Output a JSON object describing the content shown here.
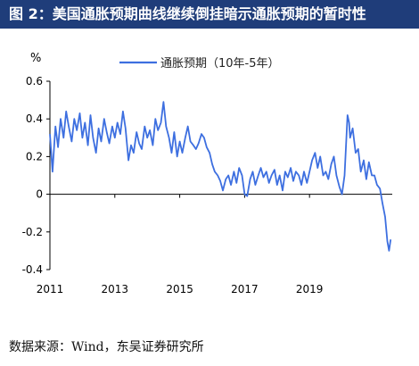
{
  "header": {
    "title": "图 2：美国通胀预期曲线继续倒挂暗示通胀预期的暂时性"
  },
  "footer": {
    "source": "数据来源：Wind，东吴证券研究所"
  },
  "chart_data": {
    "type": "line",
    "ylabel": "%",
    "ylim": [
      -0.4,
      0.6
    ],
    "xlim": [
      2011.0,
      2021.55
    ],
    "y_ticks": [
      -0.4,
      -0.2,
      0,
      0.2,
      0.4,
      0.6
    ],
    "y_tick_labels": [
      "-0.4",
      "-0.2",
      "0",
      "0.2",
      "0.4",
      "0.6"
    ],
    "x_ticks": [
      2011,
      2013,
      2015,
      2017,
      2019
    ],
    "x_tick_labels": [
      "2011",
      "2013",
      "2015",
      "2017",
      "2019"
    ],
    "legend_position": "top-center",
    "grid": false,
    "colors": {
      "series": "#3d6fe0",
      "axis": "#000000",
      "header_bg": "#1f3d7a"
    },
    "series": [
      {
        "name": "通胀预期（10年-5年）",
        "x": [
          2011.0,
          2011.08,
          2011.17,
          2011.25,
          2011.33,
          2011.42,
          2011.5,
          2011.58,
          2011.67,
          2011.75,
          2011.83,
          2011.92,
          2012.0,
          2012.08,
          2012.17,
          2012.25,
          2012.33,
          2012.42,
          2012.5,
          2012.58,
          2012.67,
          2012.75,
          2012.83,
          2012.92,
          2013.0,
          2013.08,
          2013.17,
          2013.25,
          2013.33,
          2013.42,
          2013.5,
          2013.58,
          2013.67,
          2013.75,
          2013.83,
          2013.92,
          2014.0,
          2014.08,
          2014.17,
          2014.25,
          2014.33,
          2014.42,
          2014.5,
          2014.58,
          2014.67,
          2014.75,
          2014.83,
          2014.92,
          2015.0,
          2015.08,
          2015.17,
          2015.25,
          2015.33,
          2015.42,
          2015.5,
          2015.58,
          2015.67,
          2015.75,
          2015.83,
          2015.92,
          2016.0,
          2016.08,
          2016.17,
          2016.25,
          2016.33,
          2016.42,
          2016.5,
          2016.58,
          2016.67,
          2016.75,
          2016.83,
          2016.92,
          2017.0,
          2017.08,
          2017.17,
          2017.25,
          2017.33,
          2017.42,
          2017.5,
          2017.58,
          2017.67,
          2017.75,
          2017.83,
          2017.92,
          2018.0,
          2018.08,
          2018.17,
          2018.25,
          2018.33,
          2018.42,
          2018.5,
          2018.58,
          2018.67,
          2018.75,
          2018.83,
          2018.92,
          2019.0,
          2019.08,
          2019.17,
          2019.25,
          2019.33,
          2019.42,
          2019.5,
          2019.58,
          2019.67,
          2019.75,
          2019.83,
          2019.92,
          2020.0,
          2020.08,
          2020.17,
          2020.22,
          2020.25,
          2020.33,
          2020.42,
          2020.5,
          2020.58,
          2020.67,
          2020.75,
          2020.83,
          2020.92,
          2021.0,
          2021.08,
          2021.17,
          2021.25,
          2021.33,
          2021.4,
          2021.45,
          2021.5
        ],
        "values": [
          0.32,
          0.12,
          0.36,
          0.25,
          0.4,
          0.3,
          0.44,
          0.36,
          0.28,
          0.4,
          0.34,
          0.43,
          0.3,
          0.38,
          0.26,
          0.42,
          0.3,
          0.22,
          0.35,
          0.28,
          0.4,
          0.33,
          0.27,
          0.36,
          0.3,
          0.38,
          0.32,
          0.44,
          0.35,
          0.18,
          0.26,
          0.22,
          0.33,
          0.27,
          0.24,
          0.36,
          0.3,
          0.34,
          0.26,
          0.4,
          0.34,
          0.38,
          0.49,
          0.36,
          0.3,
          0.22,
          0.33,
          0.2,
          0.28,
          0.22,
          0.3,
          0.36,
          0.28,
          0.26,
          0.24,
          0.27,
          0.32,
          0.3,
          0.25,
          0.22,
          0.16,
          0.12,
          0.1,
          0.07,
          0.02,
          0.08,
          0.1,
          0.05,
          0.12,
          0.06,
          0.14,
          0.1,
          0.0,
          -0.01,
          0.08,
          0.12,
          0.05,
          0.1,
          0.14,
          0.09,
          0.12,
          0.06,
          0.1,
          0.13,
          0.05,
          0.1,
          0.02,
          0.12,
          0.09,
          0.14,
          0.07,
          0.12,
          0.1,
          0.05,
          0.12,
          0.06,
          0.12,
          0.18,
          0.22,
          0.14,
          0.2,
          0.1,
          0.12,
          0.08,
          0.16,
          0.2,
          0.1,
          0.04,
          0.0,
          0.1,
          0.42,
          0.38,
          0.3,
          0.35,
          0.22,
          0.24,
          0.12,
          0.18,
          0.08,
          0.17,
          0.1,
          0.1,
          0.05,
          0.03,
          -0.05,
          -0.12,
          -0.25,
          -0.3,
          -0.24
        ]
      }
    ]
  }
}
